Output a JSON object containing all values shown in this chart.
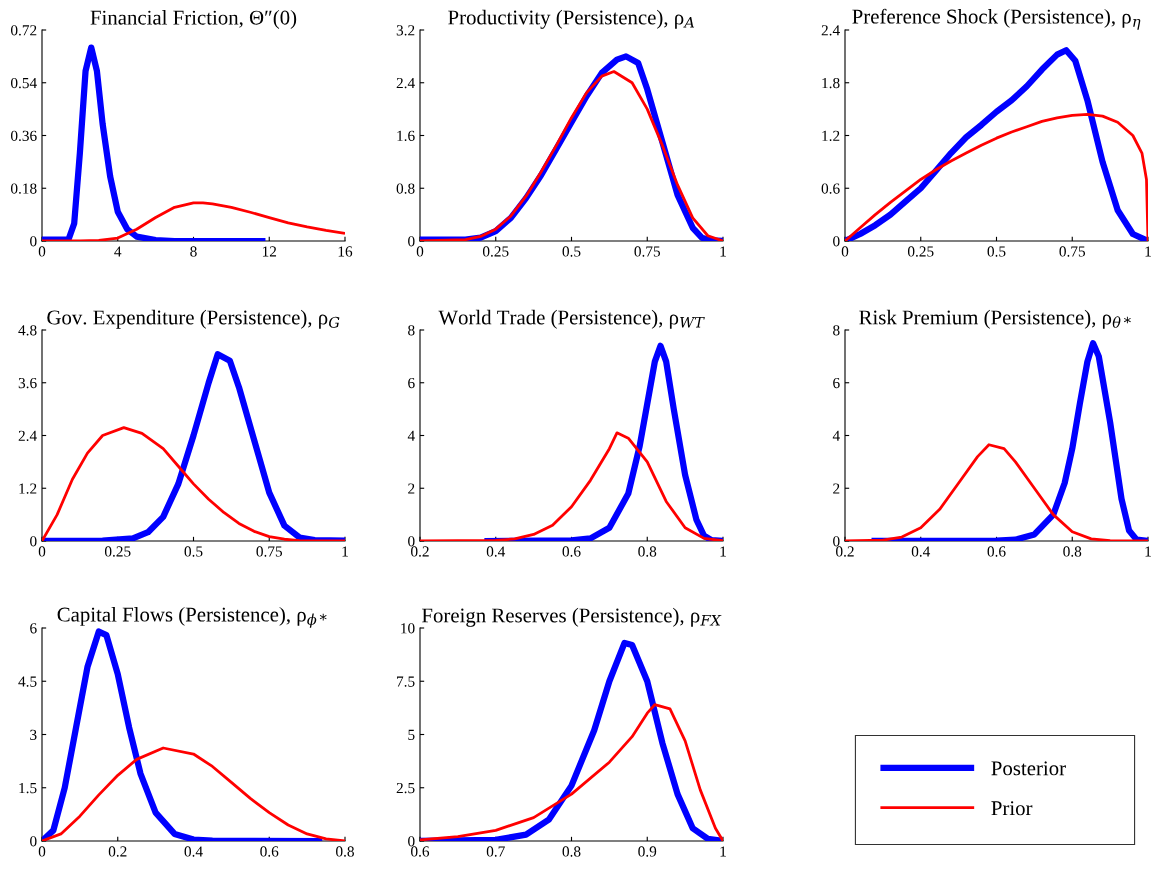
{
  "chart_data": [
    {
      "type": "line",
      "title": "Financial Friction, Θ″(0)",
      "xlim": [
        0,
        16
      ],
      "xticks": [
        0,
        4,
        8,
        12,
        16
      ],
      "ylim": [
        0,
        0.72
      ],
      "yticks": [
        0,
        0.18,
        0.36,
        0.54,
        0.72
      ],
      "grid": false,
      "series": [
        {
          "color": "#0000ff",
          "x": [
            0,
            1.4,
            1.7,
            2.0,
            2.3,
            2.6,
            2.9,
            3.2,
            3.6,
            4.0,
            4.5,
            5,
            6,
            7,
            11.8
          ],
          "values": [
            0.005,
            0.005,
            0.06,
            0.3,
            0.58,
            0.66,
            0.58,
            0.4,
            0.22,
            0.1,
            0.04,
            0.015,
            0.003,
            0,
            0
          ]
        },
        {
          "color": "#ff0000",
          "x": [
            0,
            2,
            3,
            4,
            5,
            6,
            7,
            8,
            8.5,
            9,
            10,
            11,
            12,
            13,
            14,
            15,
            16
          ],
          "values": [
            0,
            0,
            0.002,
            0.01,
            0.04,
            0.08,
            0.115,
            0.13,
            0.13,
            0.127,
            0.115,
            0.098,
            0.08,
            0.062,
            0.048,
            0.036,
            0.026
          ]
        }
      ]
    },
    {
      "type": "line",
      "title": "Productivity (Persistence), ρ$_{A}$",
      "xlim": [
        0,
        1
      ],
      "xticks": [
        0,
        0.25,
        0.5,
        0.75,
        1
      ],
      "ylim": [
        0,
        3.2
      ],
      "yticks": [
        0,
        0.8,
        1.6,
        2.4,
        3.2
      ],
      "grid": false,
      "series": [
        {
          "color": "#0000ff",
          "x": [
            0,
            0.15,
            0.2,
            0.25,
            0.3,
            0.35,
            0.4,
            0.45,
            0.5,
            0.55,
            0.6,
            0.65,
            0.68,
            0.72,
            0.75,
            0.8,
            0.85,
            0.9,
            0.93,
            0.96,
            1
          ],
          "values": [
            0.02,
            0.02,
            0.05,
            0.15,
            0.35,
            0.65,
            1.0,
            1.4,
            1.8,
            2.2,
            2.55,
            2.75,
            2.8,
            2.7,
            2.3,
            1.5,
            0.7,
            0.2,
            0.05,
            0.01,
            0
          ]
        },
        {
          "color": "#ff0000",
          "x": [
            0,
            0.15,
            0.2,
            0.25,
            0.3,
            0.35,
            0.4,
            0.45,
            0.5,
            0.55,
            0.6,
            0.64,
            0.7,
            0.75,
            0.8,
            0.85,
            0.9,
            0.95,
            1
          ],
          "values": [
            0,
            0.02,
            0.07,
            0.18,
            0.38,
            0.68,
            1.05,
            1.45,
            1.87,
            2.25,
            2.5,
            2.57,
            2.4,
            2.0,
            1.45,
            0.85,
            0.35,
            0.08,
            0
          ]
        }
      ]
    },
    {
      "type": "line",
      "title": "Preference Shock (Persistence), ρ$_{η}$",
      "xlim": [
        0,
        1
      ],
      "xticks": [
        0,
        0.25,
        0.5,
        0.75,
        1
      ],
      "ylim": [
        0,
        2.4
      ],
      "yticks": [
        0,
        0.6,
        1.2,
        1.8,
        2.4
      ],
      "grid": false,
      "series": [
        {
          "color": "#0000ff",
          "x": [
            0,
            0.05,
            0.1,
            0.15,
            0.2,
            0.25,
            0.3,
            0.35,
            0.4,
            0.45,
            0.5,
            0.55,
            0.6,
            0.65,
            0.7,
            0.73,
            0.76,
            0.8,
            0.85,
            0.9,
            0.95,
            1
          ],
          "values": [
            0,
            0.08,
            0.18,
            0.3,
            0.45,
            0.6,
            0.8,
            1.0,
            1.18,
            1.32,
            1.47,
            1.6,
            1.76,
            1.95,
            2.12,
            2.17,
            2.05,
            1.6,
            0.9,
            0.35,
            0.08,
            0
          ]
        },
        {
          "color": "#ff0000",
          "x": [
            0,
            0.05,
            0.1,
            0.15,
            0.2,
            0.25,
            0.3,
            0.35,
            0.4,
            0.45,
            0.5,
            0.55,
            0.6,
            0.65,
            0.7,
            0.75,
            0.8,
            0.85,
            0.9,
            0.95,
            0.98,
            0.995,
            1
          ],
          "values": [
            0,
            0.15,
            0.3,
            0.44,
            0.57,
            0.7,
            0.81,
            0.91,
            1.0,
            1.09,
            1.17,
            1.24,
            1.3,
            1.36,
            1.4,
            1.43,
            1.44,
            1.42,
            1.35,
            1.2,
            1.0,
            0.7,
            0
          ]
        }
      ]
    },
    {
      "type": "line",
      "title": "Gov. Expenditure (Persistence), ρ$_{G}$",
      "xlim": [
        0,
        1
      ],
      "xticks": [
        0,
        0.25,
        0.5,
        0.75,
        1
      ],
      "ylim": [
        0,
        4.8
      ],
      "yticks": [
        0,
        1.2,
        2.4,
        3.6,
        4.8
      ],
      "grid": false,
      "series": [
        {
          "color": "#0000ff",
          "x": [
            0,
            0.2,
            0.3,
            0.35,
            0.4,
            0.45,
            0.5,
            0.55,
            0.58,
            0.62,
            0.65,
            0.7,
            0.75,
            0.8,
            0.85,
            0.9,
            1
          ],
          "values": [
            0,
            0.01,
            0.06,
            0.2,
            0.55,
            1.3,
            2.4,
            3.6,
            4.25,
            4.1,
            3.5,
            2.3,
            1.1,
            0.35,
            0.08,
            0.02,
            0.01
          ]
        },
        {
          "color": "#ff0000",
          "x": [
            0,
            0.05,
            0.1,
            0.15,
            0.2,
            0.27,
            0.33,
            0.4,
            0.45,
            0.5,
            0.55,
            0.6,
            0.65,
            0.7,
            0.75,
            0.8,
            0.85,
            0.9,
            1
          ],
          "values": [
            0,
            0.6,
            1.4,
            2.0,
            2.4,
            2.58,
            2.45,
            2.1,
            1.7,
            1.3,
            0.95,
            0.65,
            0.4,
            0.22,
            0.1,
            0.04,
            0.01,
            0,
            0
          ]
        }
      ]
    },
    {
      "type": "line",
      "title": "World Trade (Persistence), ρ$_{WT}$",
      "xlim": [
        0.2,
        1
      ],
      "xticks": [
        0.2,
        0.4,
        0.6,
        0.8,
        1
      ],
      "ylim": [
        0,
        8
      ],
      "yticks": [
        0,
        2,
        4,
        6,
        8
      ],
      "grid": false,
      "series": [
        {
          "color": "#0000ff",
          "x": [
            0.37,
            0.6,
            0.65,
            0.7,
            0.75,
            0.78,
            0.8,
            0.82,
            0.835,
            0.85,
            0.87,
            0.9,
            0.93,
            0.95,
            0.97,
            1
          ],
          "values": [
            0,
            0.02,
            0.1,
            0.5,
            1.8,
            3.6,
            5.2,
            6.8,
            7.4,
            6.8,
            5.0,
            2.5,
            0.8,
            0.2,
            0.03,
            0
          ]
        },
        {
          "color": "#ff0000",
          "x": [
            0.2,
            0.4,
            0.45,
            0.5,
            0.55,
            0.6,
            0.65,
            0.7,
            0.72,
            0.75,
            0.8,
            0.85,
            0.9,
            0.95,
            1
          ],
          "values": [
            0,
            0.02,
            0.08,
            0.25,
            0.6,
            1.3,
            2.3,
            3.5,
            4.1,
            3.9,
            3.0,
            1.5,
            0.5,
            0.1,
            0.01
          ]
        }
      ]
    },
    {
      "type": "line",
      "title": "Risk Premium (Persistence), ρ$_{θ*}$",
      "xlim": [
        0.2,
        1
      ],
      "xticks": [
        0.2,
        0.4,
        0.6,
        0.8,
        1
      ],
      "ylim": [
        0,
        8
      ],
      "yticks": [
        0,
        2,
        4,
        6,
        8
      ],
      "grid": false,
      "series": [
        {
          "color": "#0000ff",
          "x": [
            0.27,
            0.6,
            0.65,
            0.7,
            0.75,
            0.78,
            0.8,
            0.82,
            0.84,
            0.855,
            0.87,
            0.9,
            0.93,
            0.95,
            0.97,
            1
          ],
          "values": [
            0,
            0.01,
            0.05,
            0.25,
            1.0,
            2.2,
            3.5,
            5.2,
            6.8,
            7.5,
            7.0,
            4.5,
            1.6,
            0.4,
            0.05,
            0
          ]
        },
        {
          "color": "#ff0000",
          "x": [
            0.2,
            0.3,
            0.35,
            0.4,
            0.45,
            0.5,
            0.55,
            0.58,
            0.62,
            0.65,
            0.7,
            0.75,
            0.8,
            0.85,
            0.9,
            1
          ],
          "values": [
            0,
            0.03,
            0.15,
            0.5,
            1.2,
            2.2,
            3.2,
            3.65,
            3.5,
            3.0,
            2.0,
            1.0,
            0.35,
            0.08,
            0.01,
            0
          ]
        }
      ]
    },
    {
      "type": "line",
      "title": "Capital Flows (Persistence), ρ$_{ϕ*}$",
      "xlim": [
        0,
        0.8
      ],
      "xticks": [
        0,
        0.2,
        0.4,
        0.6,
        0.8
      ],
      "ylim": [
        0,
        6
      ],
      "yticks": [
        0,
        1.5,
        3,
        4.5,
        6
      ],
      "grid": false,
      "series": [
        {
          "color": "#0000ff",
          "x": [
            0,
            0.03,
            0.06,
            0.09,
            0.12,
            0.15,
            0.17,
            0.2,
            0.23,
            0.26,
            0.3,
            0.35,
            0.4,
            0.45,
            0.74
          ],
          "values": [
            0,
            0.3,
            1.5,
            3.2,
            4.9,
            5.9,
            5.8,
            4.7,
            3.2,
            1.9,
            0.8,
            0.2,
            0.04,
            0.01,
            0
          ]
        },
        {
          "color": "#ff0000",
          "x": [
            0,
            0.05,
            0.1,
            0.15,
            0.2,
            0.25,
            0.32,
            0.4,
            0.45,
            0.5,
            0.55,
            0.6,
            0.65,
            0.7,
            0.75,
            0.8
          ],
          "values": [
            0,
            0.2,
            0.7,
            1.3,
            1.85,
            2.3,
            2.62,
            2.45,
            2.1,
            1.65,
            1.2,
            0.8,
            0.45,
            0.2,
            0.06,
            0
          ]
        }
      ]
    },
    {
      "type": "line",
      "title": "Foreign Reserves (Persistence), ρ$_{FX}$",
      "xlim": [
        0.6,
        1
      ],
      "xticks": [
        0.6,
        0.7,
        0.8,
        0.9,
        1
      ],
      "ylim": [
        0,
        10
      ],
      "yticks": [
        0,
        2.5,
        5,
        7.5,
        10
      ],
      "grid": false,
      "legend": "right",
      "series": [
        {
          "name": "Posterior",
          "color": "#0000ff",
          "x": [
            0.6,
            0.7,
            0.74,
            0.77,
            0.8,
            0.83,
            0.85,
            0.87,
            0.88,
            0.9,
            0.92,
            0.94,
            0.96,
            0.98,
            1
          ],
          "values": [
            0,
            0.05,
            0.3,
            1.0,
            2.6,
            5.2,
            7.5,
            9.3,
            9.2,
            7.5,
            4.6,
            2.2,
            0.6,
            0.1,
            0
          ]
        },
        {
          "name": "Prior",
          "color": "#ff0000",
          "x": [
            0.6,
            0.65,
            0.7,
            0.75,
            0.8,
            0.85,
            0.88,
            0.9,
            0.91,
            0.93,
            0.95,
            0.97,
            0.99,
            1
          ],
          "values": [
            0.05,
            0.2,
            0.5,
            1.1,
            2.2,
            3.7,
            4.9,
            6.0,
            6.4,
            6.2,
            4.7,
            2.4,
            0.6,
            0
          ]
        }
      ]
    }
  ]
}
